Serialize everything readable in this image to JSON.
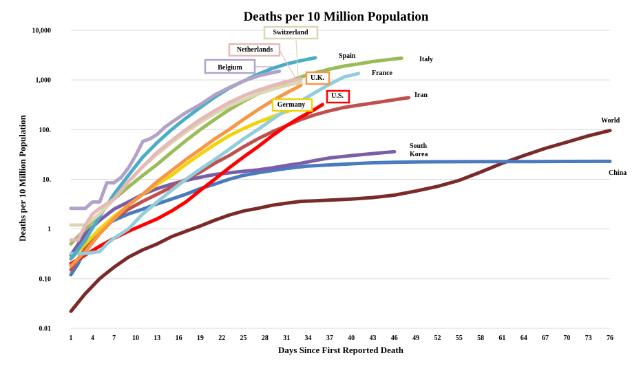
{
  "chart_data": {
    "type": "line",
    "title": "Deaths per 10 Million Population",
    "xlabel": "Days Since First Reported Death",
    "ylabel": "Deaths per 10 Million Population",
    "y_scale": "log",
    "ylim": [
      0.01,
      10000
    ],
    "xlim": [
      1,
      76
    ],
    "grid": true,
    "x_ticks": [
      "1",
      "4",
      "7",
      "10",
      "13",
      "16",
      "19",
      "22",
      "25",
      "28",
      "31",
      "34",
      "37",
      "40",
      "43",
      "46",
      "49",
      "52",
      "55",
      "58",
      "61",
      "64",
      "67",
      "70",
      "73",
      "76"
    ],
    "y_ticks": [
      {
        "value": 10000,
        "label": "10,000"
      },
      {
        "value": 1000,
        "label": "1,000"
      },
      {
        "value": 100,
        "label": "100."
      },
      {
        "value": 10,
        "label": "10."
      },
      {
        "value": 1,
        "label": "1"
      },
      {
        "value": 0.1,
        "label": "0.10"
      },
      {
        "value": 0.01,
        "label": "0.01"
      }
    ],
    "series": [
      {
        "name": "World",
        "color": "#7b2a2a",
        "label_style": "text",
        "label_lines": [
          "World"
        ],
        "points": [
          [
            1,
            0.022
          ],
          [
            3,
            0.05
          ],
          [
            5,
            0.1
          ],
          [
            7,
            0.17
          ],
          [
            9,
            0.27
          ],
          [
            11,
            0.38
          ],
          [
            13,
            0.5
          ],
          [
            15,
            0.7
          ],
          [
            17,
            0.9
          ],
          [
            19,
            1.15
          ],
          [
            21,
            1.5
          ],
          [
            23,
            1.9
          ],
          [
            25,
            2.3
          ],
          [
            27,
            2.6
          ],
          [
            29,
            3.0
          ],
          [
            31,
            3.3
          ],
          [
            33,
            3.6
          ],
          [
            35,
            3.7
          ],
          [
            37,
            3.8
          ],
          [
            40,
            4.0
          ],
          [
            43,
            4.3
          ],
          [
            46,
            4.8
          ],
          [
            49,
            5.8
          ],
          [
            52,
            7.2
          ],
          [
            55,
            9.5
          ],
          [
            58,
            14
          ],
          [
            61,
            21
          ],
          [
            64,
            30
          ],
          [
            67,
            42
          ],
          [
            70,
            56
          ],
          [
            73,
            75
          ],
          [
            76,
            96
          ]
        ]
      },
      {
        "name": "China",
        "color": "#4a7bbf",
        "label_style": "text",
        "label_lines": [
          "China"
        ],
        "points": [
          [
            1,
            0.12
          ],
          [
            2,
            0.2
          ],
          [
            3,
            0.4
          ],
          [
            4,
            0.7
          ],
          [
            5,
            1.0
          ],
          [
            7,
            1.5
          ],
          [
            9,
            2.0
          ],
          [
            11,
            2.5
          ],
          [
            13,
            3.2
          ],
          [
            15,
            4.0
          ],
          [
            17,
            5.0
          ],
          [
            19,
            6.5
          ],
          [
            21,
            8.0
          ],
          [
            23,
            10
          ],
          [
            25,
            12
          ],
          [
            27,
            13.5
          ],
          [
            29,
            15
          ],
          [
            31,
            16.5
          ],
          [
            34,
            18.5
          ],
          [
            37,
            19.5
          ],
          [
            40,
            20.5
          ],
          [
            43,
            21.5
          ],
          [
            46,
            22
          ],
          [
            50,
            22.5
          ],
          [
            55,
            22.6
          ],
          [
            60,
            22.7
          ],
          [
            65,
            22.8
          ],
          [
            70,
            22.9
          ],
          [
            76,
            23
          ]
        ]
      },
      {
        "name": "South Korea",
        "color": "#7a5fa8",
        "label_style": "text",
        "label_lines": [
          "South",
          "Korea"
        ],
        "points": [
          [
            1,
            0.3
          ],
          [
            3,
            0.8
          ],
          [
            5,
            1.5
          ],
          [
            7,
            2.5
          ],
          [
            9,
            3.5
          ],
          [
            11,
            5
          ],
          [
            13,
            6.5
          ],
          [
            15,
            8
          ],
          [
            17,
            9.5
          ],
          [
            19,
            11
          ],
          [
            21,
            12.5
          ],
          [
            23,
            13.5
          ],
          [
            25,
            14.5
          ],
          [
            27,
            15.5
          ],
          [
            29,
            17
          ],
          [
            31,
            19
          ],
          [
            33,
            21
          ],
          [
            35,
            24
          ],
          [
            37,
            27
          ],
          [
            40,
            30
          ],
          [
            43,
            33
          ],
          [
            46,
            36
          ]
        ]
      },
      {
        "name": "Iran",
        "color": "#c0504d",
        "label_style": "text",
        "label_lines": [
          "Iran"
        ],
        "points": [
          [
            1,
            0.15
          ],
          [
            2,
            0.25
          ],
          [
            3,
            0.4
          ],
          [
            5,
            0.9
          ],
          [
            7,
            1.6
          ],
          [
            9,
            2.5
          ],
          [
            11,
            3.6
          ],
          [
            13,
            5
          ],
          [
            15,
            7
          ],
          [
            17,
            10
          ],
          [
            19,
            14
          ],
          [
            21,
            21
          ],
          [
            23,
            30
          ],
          [
            25,
            45
          ],
          [
            27,
            65
          ],
          [
            29,
            90
          ],
          [
            31,
            120
          ],
          [
            33,
            160
          ],
          [
            35,
            200
          ],
          [
            37,
            240
          ],
          [
            39,
            280
          ],
          [
            41,
            310
          ],
          [
            44,
            360
          ],
          [
            47,
            420
          ],
          [
            48,
            440
          ]
        ]
      },
      {
        "name": "U.S.",
        "color": "#ff0000",
        "label_style": "box",
        "label_lines": [
          "U.S."
        ],
        "points": [
          [
            1,
            0.2
          ],
          [
            3,
            0.3
          ],
          [
            5,
            0.45
          ],
          [
            7,
            0.65
          ],
          [
            9,
            0.9
          ],
          [
            11,
            1.2
          ],
          [
            13,
            1.6
          ],
          [
            15,
            2.3
          ],
          [
            17,
            3.5
          ],
          [
            19,
            6
          ],
          [
            21,
            10
          ],
          [
            23,
            17
          ],
          [
            25,
            28
          ],
          [
            27,
            45
          ],
          [
            29,
            75
          ],
          [
            31,
            120
          ],
          [
            33,
            180
          ],
          [
            35,
            260
          ],
          [
            36,
            320
          ]
        ]
      },
      {
        "name": "Germany",
        "color": "#f2d20a",
        "label_style": "box",
        "label_lines": [
          "Germany"
        ],
        "points": [
          [
            1,
            0.25
          ],
          [
            3,
            0.5
          ],
          [
            5,
            1.0
          ],
          [
            7,
            1.8
          ],
          [
            9,
            3.0
          ],
          [
            11,
            5
          ],
          [
            13,
            8
          ],
          [
            15,
            12
          ],
          [
            17,
            20
          ],
          [
            19,
            32
          ],
          [
            21,
            50
          ],
          [
            23,
            75
          ],
          [
            25,
            105
          ],
          [
            27,
            140
          ],
          [
            29,
            180
          ],
          [
            31,
            230
          ],
          [
            33,
            290
          ]
        ]
      },
      {
        "name": "U.K.",
        "color": "#f79646",
        "label_style": "box",
        "label_lines": [
          "U.K."
        ],
        "points": [
          [
            1,
            0.18
          ],
          [
            3,
            0.35
          ],
          [
            5,
            0.8
          ],
          [
            7,
            1.6
          ],
          [
            9,
            3
          ],
          [
            11,
            5
          ],
          [
            13,
            9
          ],
          [
            15,
            15
          ],
          [
            17,
            25
          ],
          [
            19,
            40
          ],
          [
            21,
            65
          ],
          [
            23,
            100
          ],
          [
            25,
            160
          ],
          [
            27,
            250
          ],
          [
            29,
            380
          ],
          [
            31,
            550
          ],
          [
            33,
            780
          ]
        ]
      },
      {
        "name": "France",
        "color": "#92cddc",
        "label_style": "text",
        "label_lines": [
          "France"
        ],
        "points": [
          [
            1,
            0.32
          ],
          [
            3,
            0.32
          ],
          [
            5,
            0.35
          ],
          [
            6,
            0.5
          ],
          [
            7,
            0.65
          ],
          [
            9,
            1.0
          ],
          [
            11,
            2.0
          ],
          [
            13,
            3.5
          ],
          [
            15,
            6
          ],
          [
            17,
            10
          ],
          [
            19,
            16
          ],
          [
            21,
            25
          ],
          [
            23,
            40
          ],
          [
            25,
            65
          ],
          [
            27,
            100
          ],
          [
            29,
            160
          ],
          [
            31,
            250
          ],
          [
            33,
            380
          ],
          [
            35,
            560
          ],
          [
            37,
            820
          ],
          [
            39,
            1150
          ],
          [
            41,
            1350
          ]
        ]
      },
      {
        "name": "Italy",
        "color": "#9bbb59",
        "label_style": "text",
        "label_lines": [
          "Italy"
        ],
        "points": [
          [
            1,
            0.5
          ],
          [
            3,
            1.0
          ],
          [
            5,
            2.0
          ],
          [
            7,
            4.0
          ],
          [
            9,
            7.0
          ],
          [
            11,
            12
          ],
          [
            13,
            20
          ],
          [
            15,
            35
          ],
          [
            17,
            60
          ],
          [
            19,
            100
          ],
          [
            21,
            160
          ],
          [
            23,
            250
          ],
          [
            25,
            370
          ],
          [
            27,
            520
          ],
          [
            29,
            700
          ],
          [
            31,
            900
          ],
          [
            33,
            1150
          ],
          [
            35,
            1400
          ],
          [
            37,
            1650
          ],
          [
            39,
            1900
          ],
          [
            41,
            2100
          ],
          [
            43,
            2350
          ],
          [
            45,
            2550
          ],
          [
            47,
            2750
          ]
        ]
      },
      {
        "name": "Spain",
        "color": "#4bacc6",
        "label_style": "text",
        "label_lines": [
          "Spain"
        ],
        "points": [
          [
            1,
            0.25
          ],
          [
            3,
            0.6
          ],
          [
            5,
            1.8
          ],
          [
            7,
            5
          ],
          [
            9,
            12
          ],
          [
            11,
            28
          ],
          [
            13,
            55
          ],
          [
            15,
            100
          ],
          [
            17,
            170
          ],
          [
            19,
            280
          ],
          [
            21,
            450
          ],
          [
            23,
            680
          ],
          [
            25,
            950
          ],
          [
            27,
            1300
          ],
          [
            29,
            1700
          ],
          [
            31,
            2100
          ],
          [
            33,
            2450
          ],
          [
            35,
            2800
          ]
        ]
      },
      {
        "name": "Switzerland",
        "color": "#dcd6b2",
        "label_style": "box",
        "label_lines": [
          "Switzerland"
        ],
        "points": [
          [
            1,
            1.2
          ],
          [
            3,
            1.2
          ],
          [
            5,
            2.0
          ],
          [
            7,
            4
          ],
          [
            9,
            9
          ],
          [
            11,
            18
          ],
          [
            13,
            32
          ],
          [
            15,
            55
          ],
          [
            17,
            90
          ],
          [
            19,
            140
          ],
          [
            21,
            210
          ],
          [
            23,
            300
          ],
          [
            25,
            400
          ],
          [
            27,
            520
          ],
          [
            29,
            650
          ],
          [
            31,
            780
          ],
          [
            33,
            900
          ]
        ]
      },
      {
        "name": "Netherlands",
        "color": "#e6b9b8",
        "label_style": "box",
        "label_lines": [
          "Netherlands"
        ],
        "points": [
          [
            1,
            0.6
          ],
          [
            2,
            0.6
          ],
          [
            3,
            1.2
          ],
          [
            4,
            2.0
          ],
          [
            5,
            2.6
          ],
          [
            7,
            4
          ],
          [
            9,
            9
          ],
          [
            11,
            18
          ],
          [
            13,
            35
          ],
          [
            15,
            60
          ],
          [
            17,
            100
          ],
          [
            19,
            160
          ],
          [
            21,
            240
          ],
          [
            23,
            350
          ],
          [
            25,
            480
          ],
          [
            27,
            620
          ],
          [
            29,
            770
          ],
          [
            31,
            930
          ],
          [
            33,
            1050
          ]
        ]
      },
      {
        "name": "Belgium",
        "color": "#b2a2c7",
        "label_style": "box",
        "label_lines": [
          "Belgium"
        ],
        "points": [
          [
            1,
            2.6
          ],
          [
            3,
            2.6
          ],
          [
            4,
            3.5
          ],
          [
            5,
            3.5
          ],
          [
            6,
            8.5
          ],
          [
            7,
            8.5
          ],
          [
            8,
            11
          ],
          [
            9,
            17
          ],
          [
            10,
            30
          ],
          [
            11,
            58
          ],
          [
            12,
            65
          ],
          [
            13,
            80
          ],
          [
            14,
            110
          ],
          [
            15,
            140
          ],
          [
            17,
            220
          ],
          [
            19,
            320
          ],
          [
            21,
            500
          ],
          [
            23,
            700
          ],
          [
            25,
            950
          ],
          [
            27,
            1200
          ],
          [
            29,
            1400
          ],
          [
            30,
            1500
          ]
        ]
      }
    ]
  }
}
